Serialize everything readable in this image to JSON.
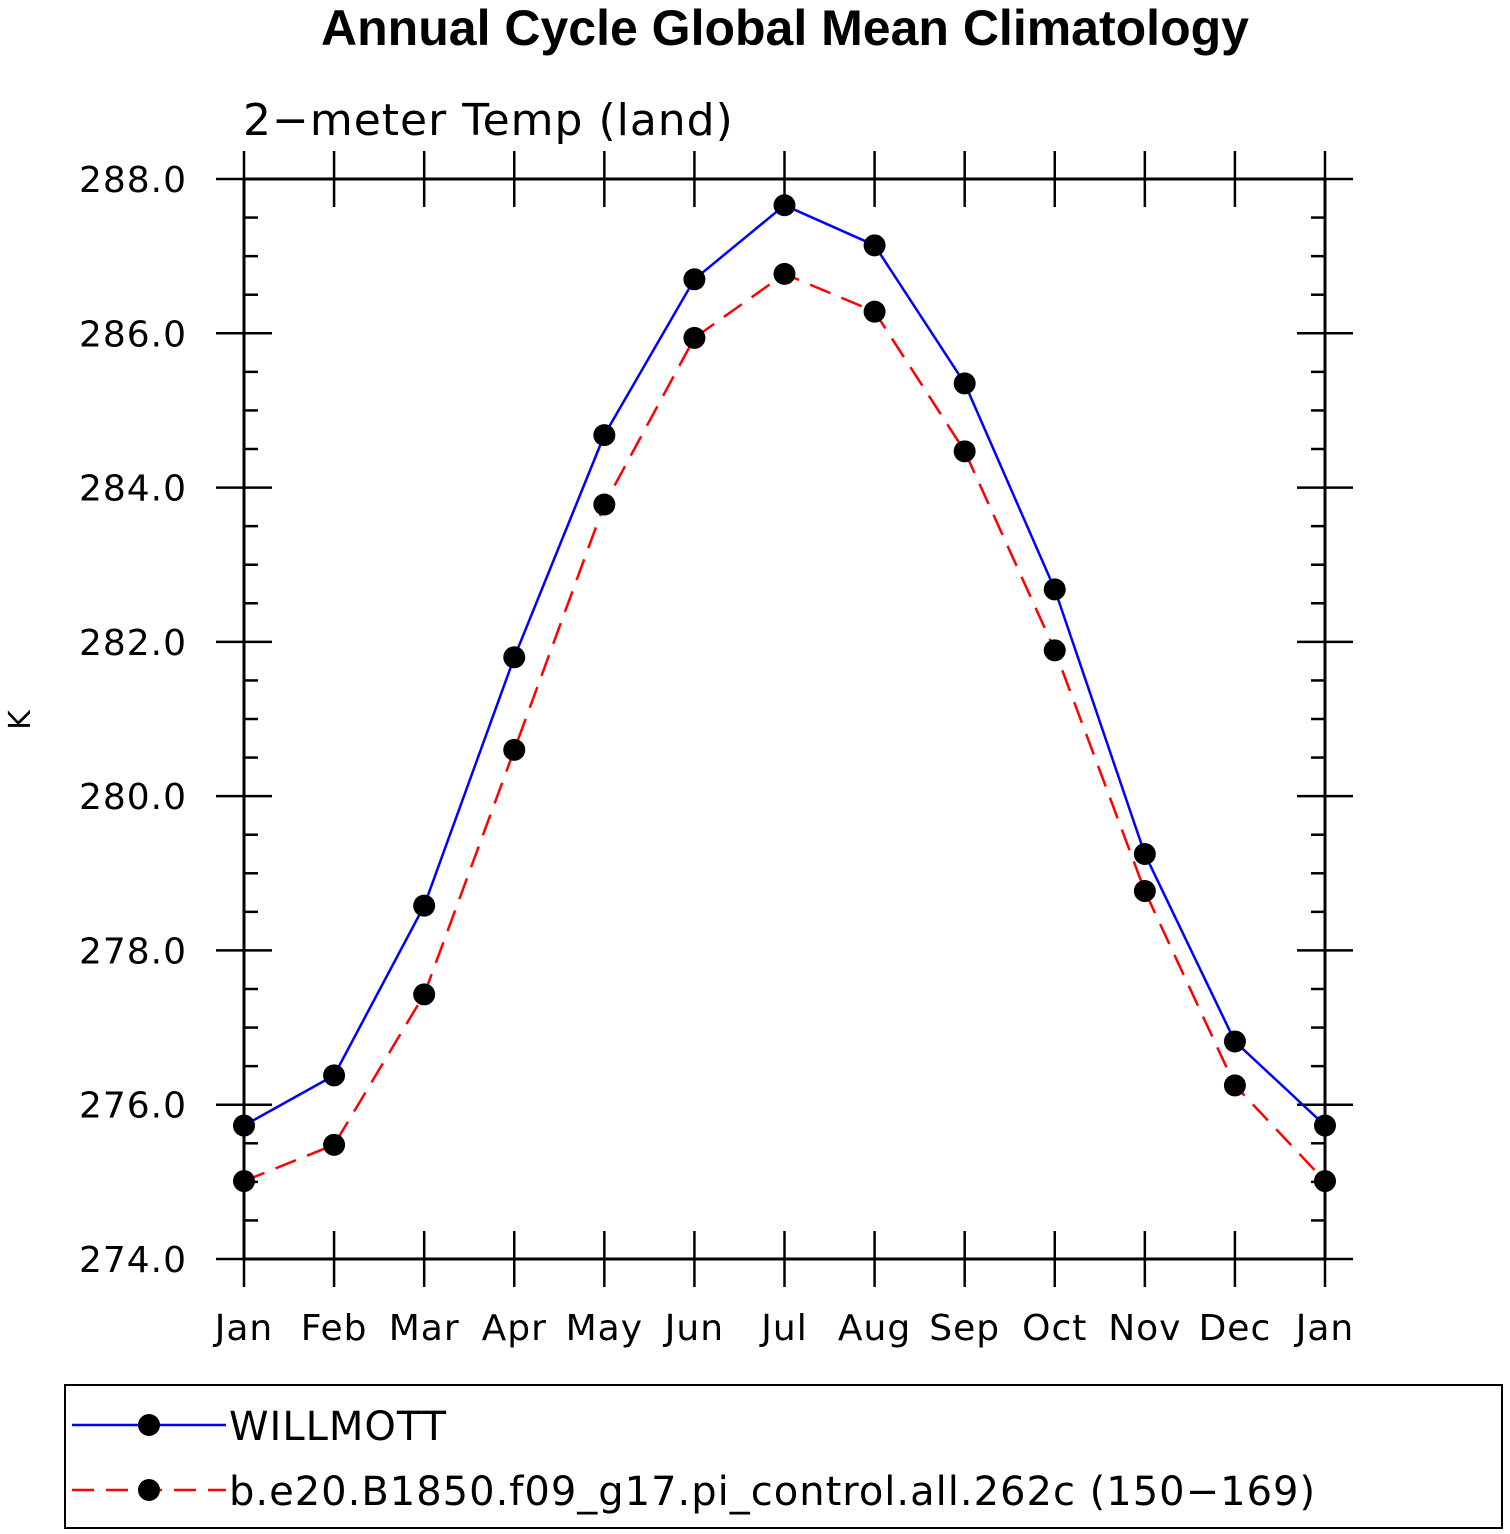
{
  "chart_data": {
    "type": "line",
    "title": "Annual Cycle Global Mean Climatology",
    "subtitle": "2−meter Temp (land)",
    "xlabel": "",
    "ylabel": "K",
    "categories": [
      "Jan",
      "Feb",
      "Mar",
      "Apr",
      "May",
      "Jun",
      "Jul",
      "Aug",
      "Sep",
      "Oct",
      "Nov",
      "Dec",
      "Jan"
    ],
    "ylim": [
      274.0,
      288.0
    ],
    "yticks": [
      "274.0",
      "276.0",
      "278.0",
      "280.0",
      "282.0",
      "284.0",
      "286.0",
      "288.0"
    ],
    "ytick_values": [
      274,
      276,
      278,
      280,
      282,
      284,
      286,
      288
    ],
    "grid": false,
    "legend_position": "bottom",
    "series": [
      {
        "name": "WILLMOTT",
        "color": "#0000ff",
        "dash": "solid",
        "values": [
          275.73,
          276.38,
          278.58,
          281.8,
          284.68,
          286.7,
          287.66,
          287.14,
          285.35,
          282.68,
          279.25,
          276.82,
          275.73
        ]
      },
      {
        "name": "b.e20.B1850.f09_g17.pi_control.all.262c (150−169)",
        "color": "#ff0000",
        "dash": "dashed",
        "values": [
          275.01,
          275.48,
          277.43,
          280.6,
          283.78,
          285.94,
          286.77,
          286.28,
          284.47,
          281.89,
          278.77,
          276.25,
          275.01
        ]
      }
    ]
  }
}
